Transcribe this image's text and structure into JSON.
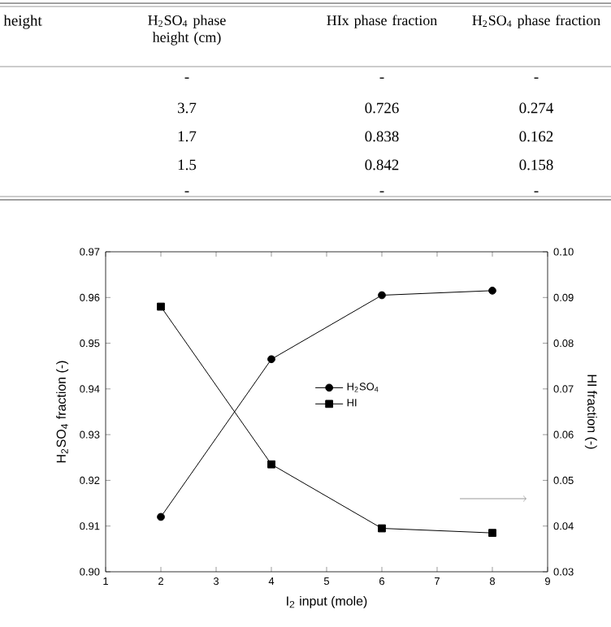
{
  "chart_data": {
    "type": "line",
    "xlabel": "I$_{2}$ input (mole)",
    "ylabel": "H$_{2}$SO$_{4}$ fraction (-)",
    "y2label": "HI fraction (-)",
    "x": [
      2,
      4,
      6,
      8
    ],
    "series": [
      {
        "name": "H$_{2}$SO$_{4}$",
        "color": "#000000",
        "marker": "circle",
        "values": [
          0.912,
          0.9465,
          0.9605,
          0.9615
        ]
      },
      {
        "name": "HI",
        "color": "#000000",
        "marker": "square",
        "axis": "y2",
        "values": [
          0.088,
          0.0535,
          0.0395,
          0.0385
        ]
      }
    ],
    "xlim": [
      1,
      9
    ],
    "xticks": [
      1,
      2,
      3,
      4,
      5,
      6,
      7,
      8,
      9
    ],
    "ylim": [
      0.9,
      0.97
    ],
    "yticks": [
      {
        "value": 0.9,
        "label": "0.90"
      },
      0.91,
      0.92,
      0.93,
      0.94,
      0.95,
      0.96,
      0.97
    ],
    "y2lim": [
      0.03,
      0.1
    ],
    "y2ticks": [
      0.03,
      0.04,
      0.05,
      0.06,
      0.07,
      0.08,
      0.09,
      {
        "value": 0.1,
        "label": "0.10"
      }
    ],
    "legend": "center",
    "grid": false,
    "annotations": [
      "height",
      "H$_{2}$SO$_{4}$ phase height (cm)",
      "HIx phase fraction",
      "H$_{2}$SO$_{4}$ phase fraction",
      "-",
      "-",
      "-",
      "3.7",
      "0.726",
      "0.274",
      "1.7",
      "0.838",
      "0.162",
      "1.5",
      "0.842",
      "0.158",
      "-",
      "-",
      "-"
    ]
  }
}
